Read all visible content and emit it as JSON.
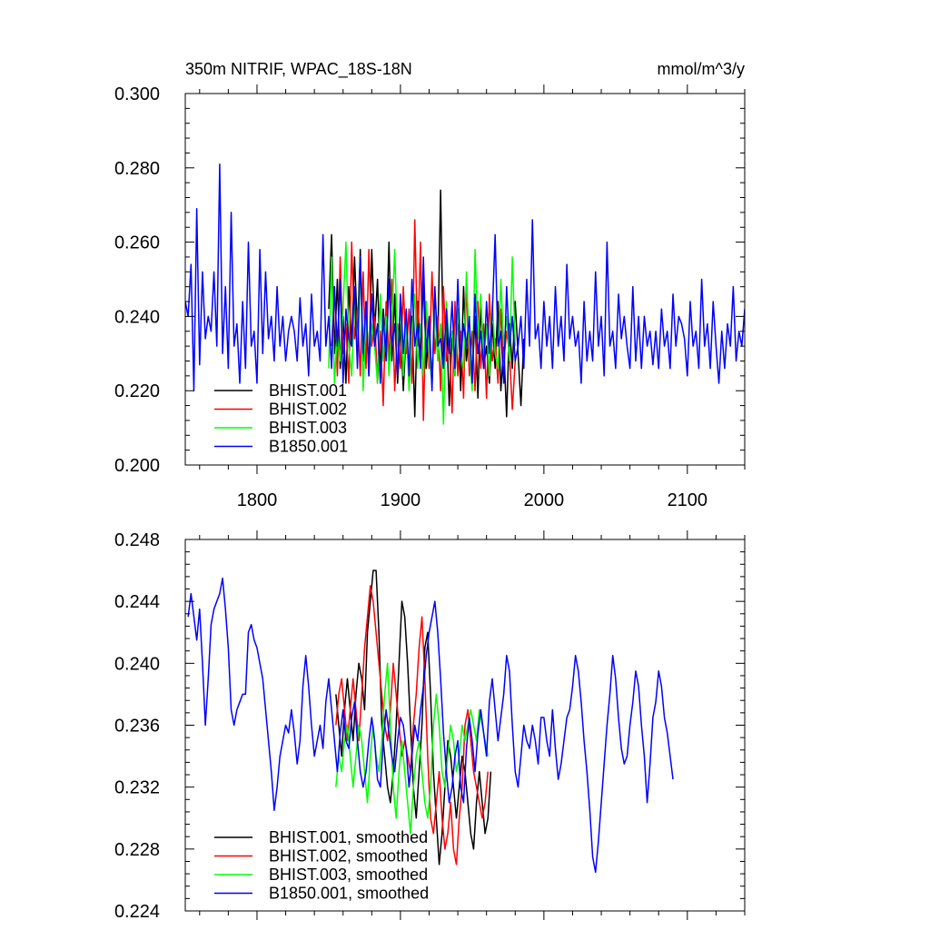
{
  "chart_data": [
    {
      "type": "line",
      "title": "350m NITRIF, WPAC_18S-18N",
      "units": "mmol/m^3/y",
      "xlim": [
        1750,
        2140
      ],
      "ylim": [
        0.2,
        0.3
      ],
      "x_ticks": [
        1800,
        1900,
        2000,
        2100
      ],
      "x_tick_labels": [
        "1800",
        "1900",
        "2000",
        "2100"
      ],
      "y_ticks": [
        0.2,
        0.22,
        0.24,
        0.26,
        0.28,
        0.3
      ],
      "y_tick_labels": [
        "0.200",
        "0.220",
        "0.240",
        "0.260",
        "0.280",
        "0.300"
      ],
      "legend_position": "bottom-left",
      "series": [
        {
          "name": "BHIST.001",
          "color": "#000000",
          "x_start": 1850,
          "step": 2,
          "values": [
            0.242,
            0.262,
            0.23,
            0.25,
            0.226,
            0.24,
            0.222,
            0.248,
            0.232,
            0.256,
            0.236,
            0.258,
            0.228,
            0.244,
            0.224,
            0.258,
            0.236,
            0.25,
            0.226,
            0.242,
            0.232,
            0.26,
            0.228,
            0.246,
            0.222,
            0.238,
            0.22,
            0.236,
            0.226,
            0.24,
            0.213,
            0.244,
            0.23,
            0.25,
            0.226,
            0.238,
            0.222,
            0.244,
            0.232,
            0.274,
            0.228,
            0.24,
            0.216,
            0.236,
            0.224,
            0.242,
            0.22,
            0.248,
            0.228,
            0.236,
            0.224,
            0.24,
            0.218,
            0.244,
            0.226,
            0.232,
            0.222,
            0.238,
            0.226,
            0.244,
            0.22,
            0.232,
            0.213,
            0.238,
            0.226,
            0.244,
            0.23,
            0.216,
            0.234
          ]
        },
        {
          "name": "BHIST.002",
          "color": "#ff0000",
          "x_start": 1852,
          "step": 2,
          "values": [
            0.232,
            0.248,
            0.224,
            0.256,
            0.23,
            0.238,
            0.222,
            0.26,
            0.234,
            0.242,
            0.224,
            0.252,
            0.226,
            0.258,
            0.232,
            0.24,
            0.222,
            0.236,
            0.216,
            0.244,
            0.228,
            0.25,
            0.22,
            0.238,
            0.226,
            0.248,
            0.23,
            0.242,
            0.222,
            0.266,
            0.232,
            0.26,
            0.212,
            0.244,
            0.226,
            0.252,
            0.23,
            0.24,
            0.22,
            0.248,
            0.228,
            0.234,
            0.214,
            0.244,
            0.224,
            0.236,
            0.218,
            0.25,
            0.224,
            0.236,
            0.22,
            0.244,
            0.226,
            0.238,
            0.218,
            0.246,
            0.228,
            0.234,
            0.222,
            0.242,
            0.228,
            0.236,
            0.23,
            0.215,
            0.228
          ]
        },
        {
          "name": "BHIST.003",
          "color": "#00ff00",
          "x_start": 1850,
          "step": 2,
          "values": [
            0.226,
            0.256,
            0.222,
            0.236,
            0.228,
            0.242,
            0.26,
            0.232,
            0.224,
            0.244,
            0.232,
            0.256,
            0.22,
            0.24,
            0.226,
            0.238,
            0.232,
            0.222,
            0.246,
            0.228,
            0.24,
            0.224,
            0.238,
            0.258,
            0.232,
            0.242,
            0.224,
            0.238,
            0.22,
            0.236,
            0.246,
            0.226,
            0.238,
            0.224,
            0.244,
            0.23,
            0.222,
            0.242,
            0.228,
            0.238,
            0.211,
            0.244,
            0.232,
            0.236,
            0.224,
            0.242,
            0.23,
            0.226,
            0.252,
            0.232,
            0.22,
            0.258,
            0.234,
            0.246,
            0.228,
            0.238,
            0.224,
            0.244,
            0.23,
            0.226,
            0.25,
            0.232,
            0.24,
            0.228,
            0.256,
            0.232
          ]
        },
        {
          "name": "B1850.001",
          "color": "#0000ff",
          "x_start": 1750,
          "step": 2,
          "values": [
            0.244,
            0.24,
            0.254,
            0.22,
            0.269,
            0.227,
            0.252,
            0.234,
            0.24,
            0.236,
            0.252,
            0.232,
            0.281,
            0.23,
            0.248,
            0.226,
            0.268,
            0.232,
            0.238,
            0.222,
            0.244,
            0.226,
            0.26,
            0.232,
            0.236,
            0.222,
            0.258,
            0.23,
            0.252,
            0.234,
            0.24,
            0.228,
            0.248,
            0.232,
            0.24,
            0.228,
            0.236,
            0.24,
            0.236,
            0.228,
            0.245,
            0.232,
            0.238,
            0.224,
            0.246,
            0.232,
            0.236,
            0.228,
            0.262,
            0.232,
            0.24,
            0.226,
            0.248,
            0.232,
            0.25,
            0.222,
            0.242,
            0.234,
            0.232,
            0.248,
            0.226,
            0.256,
            0.23,
            0.244,
            0.224,
            0.246,
            0.232,
            0.238,
            0.222,
            0.24,
            0.228,
            0.25,
            0.232,
            0.238,
            0.224,
            0.246,
            0.23,
            0.242,
            0.224,
            0.25,
            0.232,
            0.238,
            0.226,
            0.256,
            0.23,
            0.24,
            0.22,
            0.248,
            0.232,
            0.234,
            0.226,
            0.242,
            0.23,
            0.244,
            0.226,
            0.25,
            0.228,
            0.238,
            0.232,
            0.24,
            0.222,
            0.246,
            0.23,
            0.236,
            0.226,
            0.244,
            0.23,
            0.24,
            0.262,
            0.232,
            0.236,
            0.222,
            0.248,
            0.232,
            0.24,
            0.228,
            0.232,
            0.24,
            0.226,
            0.25,
            0.232,
            0.266,
            0.234,
            0.238,
            0.226,
            0.244,
            0.232,
            0.24,
            0.226,
            0.248,
            0.232,
            0.24,
            0.228,
            0.254,
            0.234,
            0.24,
            0.232,
            0.236,
            0.222,
            0.244,
            0.228,
            0.236,
            0.228,
            0.252,
            0.232,
            0.24,
            0.224,
            0.26,
            0.232,
            0.236,
            0.226,
            0.246,
            0.234,
            0.24,
            0.232,
            0.226,
            0.248,
            0.228,
            0.24,
            0.226,
            0.24,
            0.232,
            0.236,
            0.227,
            0.236,
            0.226,
            0.242,
            0.232,
            0.236,
            0.226,
            0.246,
            0.232,
            0.24,
            0.238,
            0.234,
            0.224,
            0.244,
            0.232,
            0.236,
            0.226,
            0.25,
            0.232,
            0.238,
            0.226,
            0.244,
            0.232,
            0.222,
            0.236,
            0.226,
            0.238,
            0.232,
            0.248,
            0.228,
            0.236,
            0.232,
            0.242,
            0.228,
            0.236
          ]
        }
      ]
    },
    {
      "type": "line",
      "xlim": [
        1750,
        2140
      ],
      "ylim": [
        0.224,
        0.248
      ],
      "x_ticks": [
        1800,
        1900,
        2000,
        2100
      ],
      "x_tick_labels": [],
      "y_ticks": [
        0.224,
        0.228,
        0.232,
        0.236,
        0.24,
        0.244,
        0.248
      ],
      "y_tick_labels": [
        "0.224",
        "0.228",
        "0.232",
        "0.236",
        "0.240",
        "0.244",
        "0.248"
      ],
      "legend_position": "bottom-left",
      "series": [
        {
          "name": "BHIST.001, smoothed",
          "color": "#000000",
          "x_start": 1855,
          "step": 2,
          "values": [
            0.238,
            0.236,
            0.234,
            0.237,
            0.239,
            0.237,
            0.235,
            0.238,
            0.24,
            0.239,
            0.237,
            0.242,
            0.244,
            0.246,
            0.246,
            0.242,
            0.236,
            0.234,
            0.232,
            0.231,
            0.233,
            0.236,
            0.24,
            0.244,
            0.243,
            0.24,
            0.236,
            0.232,
            0.23,
            0.233,
            0.236,
            0.241,
            0.242,
            0.238,
            0.233,
            0.23,
            0.227,
            0.229,
            0.232,
            0.235,
            0.234,
            0.232,
            0.23,
            0.232,
            0.234,
            0.233,
            0.231,
            0.229,
            0.228,
            0.231,
            0.233,
            0.231,
            0.229,
            0.23,
            0.233
          ]
        },
        {
          "name": "BHIST.002, smoothed",
          "color": "#ff0000",
          "x_start": 1855,
          "step": 2,
          "values": [
            0.236,
            0.238,
            0.239,
            0.237,
            0.235,
            0.237,
            0.239,
            0.237,
            0.235,
            0.238,
            0.241,
            0.243,
            0.245,
            0.244,
            0.242,
            0.24,
            0.238,
            0.236,
            0.235,
            0.237,
            0.24,
            0.238,
            0.236,
            0.234,
            0.235,
            0.234,
            0.233,
            0.236,
            0.238,
            0.241,
            0.243,
            0.239,
            0.234,
            0.23,
            0.229,
            0.231,
            0.233,
            0.23,
            0.228,
            0.229,
            0.231,
            0.228,
            0.227,
            0.23,
            0.232,
            0.236,
            0.237,
            0.235,
            0.233,
            0.232,
            0.231,
            0.23,
            0.231,
            0.233
          ]
        },
        {
          "name": "BHIST.003, smoothed",
          "color": "#00ff00",
          "x_start": 1855,
          "step": 2,
          "values": [
            0.232,
            0.234,
            0.233,
            0.235,
            0.236,
            0.234,
            0.232,
            0.234,
            0.236,
            0.235,
            0.233,
            0.231,
            0.234,
            0.236,
            0.234,
            0.233,
            0.235,
            0.238,
            0.24,
            0.236,
            0.232,
            0.23,
            0.233,
            0.235,
            0.233,
            0.231,
            0.229,
            0.232,
            0.234,
            0.235,
            0.233,
            0.231,
            0.23,
            0.232,
            0.236,
            0.238,
            0.236,
            0.233,
            0.232,
            0.234,
            0.236,
            0.235,
            0.233,
            0.234,
            0.236,
            0.235,
            0.236,
            0.237,
            0.236,
            0.235,
            0.237,
            0.236,
            0.235,
            0.234
          ]
        },
        {
          "name": "B1850.001, smoothed",
          "color": "#0000ff",
          "x_start": 1752,
          "step": 2,
          "values": [
            0.243,
            0.2445,
            0.243,
            0.2415,
            0.2435,
            0.24,
            0.236,
            0.239,
            0.2425,
            0.2435,
            0.244,
            0.2445,
            0.2455,
            0.2435,
            0.241,
            0.237,
            0.236,
            0.237,
            0.2375,
            0.238,
            0.238,
            0.242,
            0.2425,
            0.2415,
            0.241,
            0.24,
            0.239,
            0.237,
            0.235,
            0.233,
            0.2305,
            0.232,
            0.234,
            0.235,
            0.236,
            0.2355,
            0.237,
            0.2355,
            0.2335,
            0.235,
            0.2385,
            0.2405,
            0.2385,
            0.236,
            0.234,
            0.235,
            0.236,
            0.2345,
            0.2375,
            0.239,
            0.237,
            0.235,
            0.233,
            0.2355,
            0.237,
            0.235,
            0.2345,
            0.2365,
            0.2375,
            0.235,
            0.233,
            0.232,
            0.233,
            0.235,
            0.2365,
            0.235,
            0.2325,
            0.232,
            0.235,
            0.237,
            0.2355,
            0.234,
            0.233,
            0.235,
            0.2365,
            0.236,
            0.2345,
            0.232,
            0.234,
            0.236,
            0.235,
            0.237,
            0.2385,
            0.2405,
            0.242,
            0.243,
            0.244,
            0.242,
            0.239,
            0.2355,
            0.233,
            0.231,
            0.232,
            0.234,
            0.235,
            0.232,
            0.231,
            0.2345,
            0.2365,
            0.235,
            0.233,
            0.2355,
            0.237,
            0.2355,
            0.234,
            0.2375,
            0.239,
            0.237,
            0.235,
            0.2365,
            0.238,
            0.2405,
            0.2395,
            0.236,
            0.233,
            0.232,
            0.234,
            0.236,
            0.235,
            0.2345,
            0.236,
            0.235,
            0.2335,
            0.2365,
            0.2365,
            0.235,
            0.234,
            0.237,
            0.2345,
            0.2325,
            0.2335,
            0.235,
            0.2365,
            0.237,
            0.2385,
            0.2405,
            0.2395,
            0.2375,
            0.235,
            0.233,
            0.2305,
            0.2275,
            0.2265,
            0.2285,
            0.231,
            0.2335,
            0.236,
            0.238,
            0.2405,
            0.239,
            0.2365,
            0.2345,
            0.2335,
            0.234,
            0.236,
            0.2375,
            0.2395,
            0.2385,
            0.236,
            0.234,
            0.231,
            0.2335,
            0.2365,
            0.2375,
            0.2395,
            0.2385,
            0.2365,
            0.2355,
            0.234,
            0.2325
          ]
        }
      ]
    }
  ]
}
